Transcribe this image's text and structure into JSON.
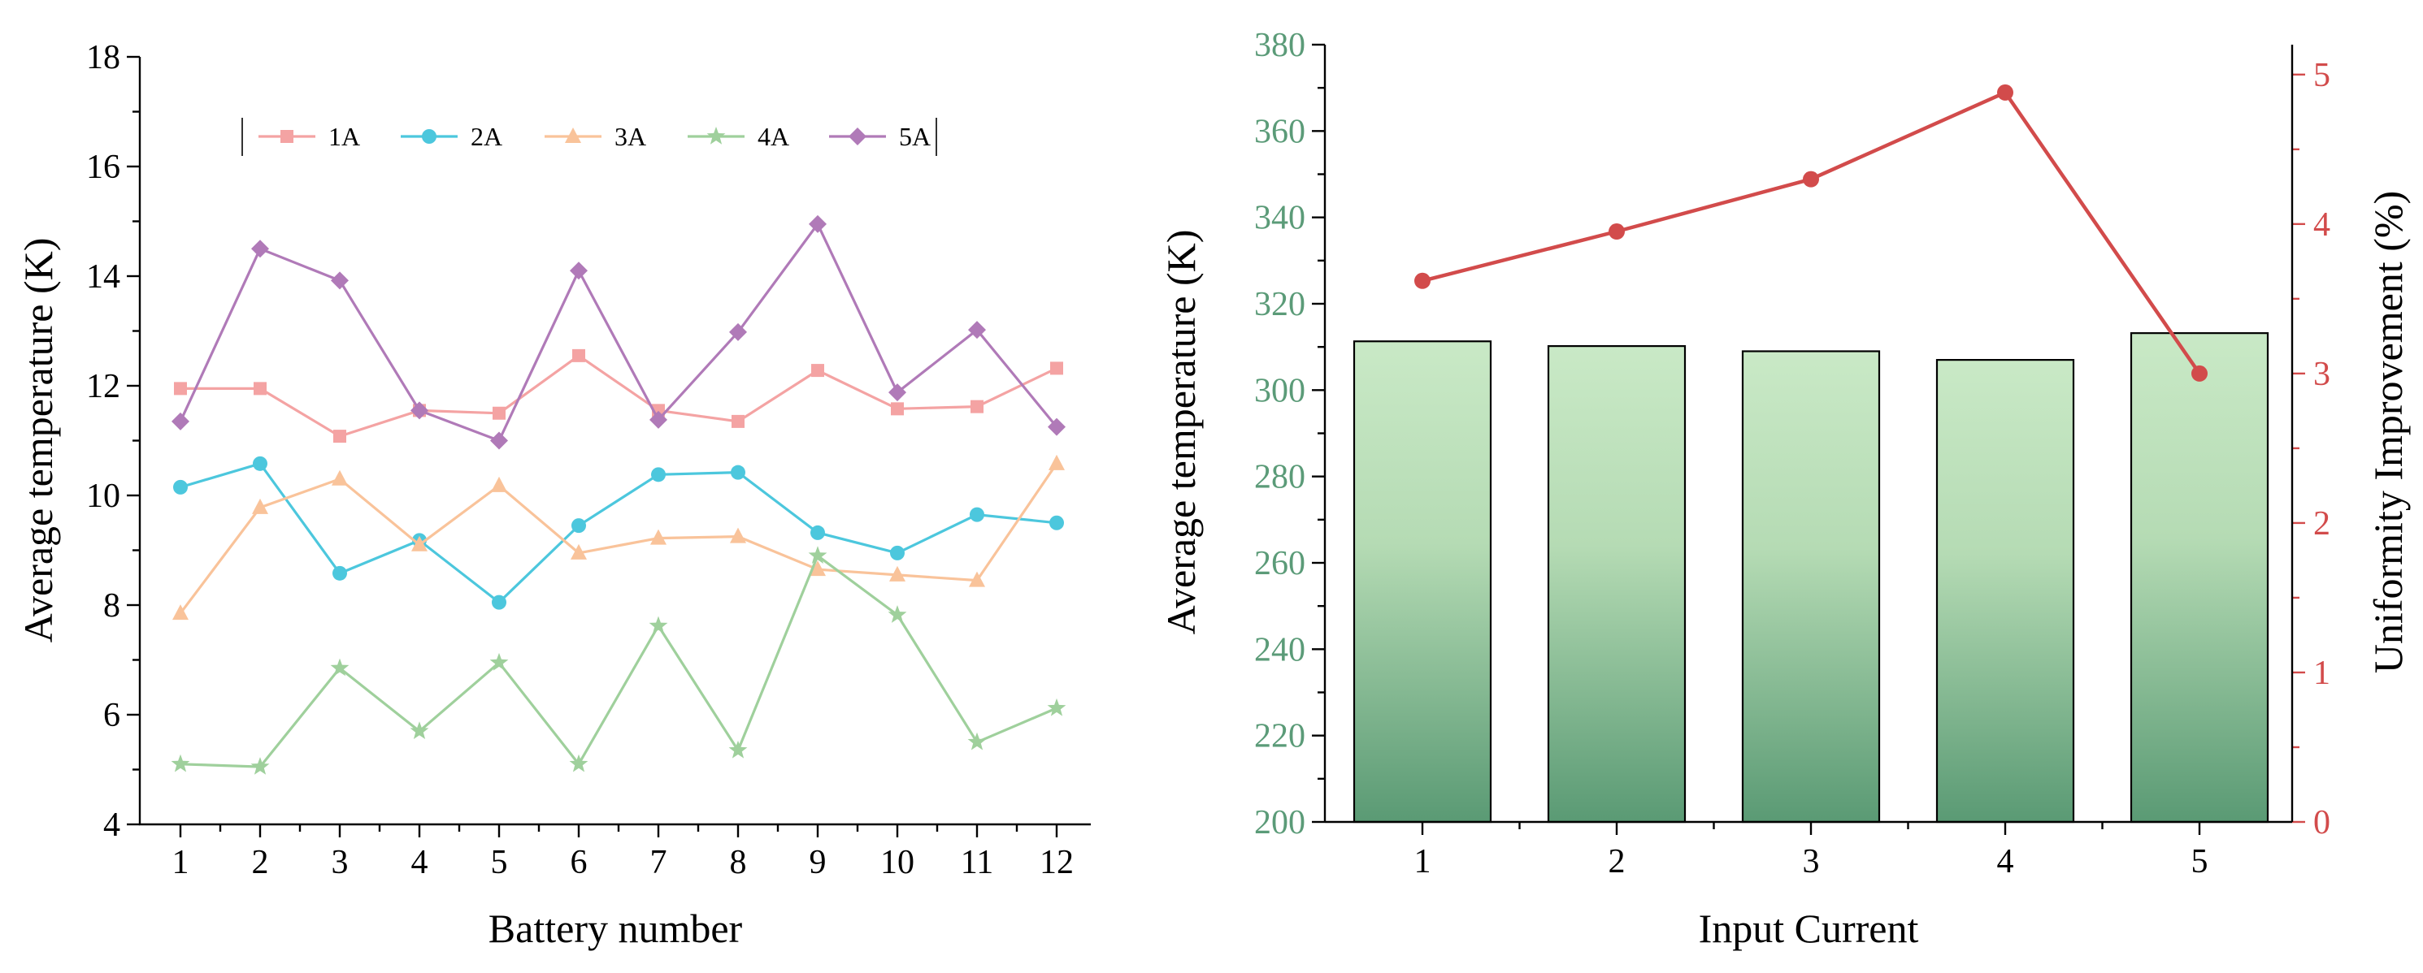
{
  "chart_data": [
    {
      "type": "line",
      "xlabel": "Battery number",
      "ylabel": "Average temperature (K)",
      "ylim": [
        4,
        18
      ],
      "yticks": [
        4,
        6,
        8,
        10,
        12,
        14,
        16,
        18
      ],
      "x": [
        1,
        2,
        3,
        4,
        5,
        6,
        7,
        8,
        9,
        10,
        11,
        12
      ],
      "legend_position": "top",
      "series": [
        {
          "name": "1A",
          "marker": "square",
          "color": "#f4a3a3",
          "values": [
            11.95,
            11.95,
            11.08,
            11.55,
            11.5,
            12.55,
            11.55,
            11.35,
            12.28,
            11.58,
            11.62,
            12.32
          ]
        },
        {
          "name": "2A",
          "marker": "circle",
          "color": "#4cc7dd",
          "values": [
            10.15,
            10.58,
            8.58,
            9.18,
            8.05,
            9.45,
            10.38,
            10.42,
            9.32,
            8.95,
            9.65,
            9.5
          ]
        },
        {
          "name": "3A",
          "marker": "triangle",
          "color": "#f9c39a",
          "values": [
            7.85,
            9.78,
            10.3,
            9.1,
            10.18,
            8.95,
            9.22,
            9.25,
            8.65,
            8.55,
            8.45,
            10.58
          ]
        },
        {
          "name": "4A",
          "marker": "star",
          "color": "#9fd09c",
          "values": [
            5.1,
            5.05,
            6.85,
            5.7,
            6.95,
            5.1,
            7.62,
            5.35,
            8.9,
            7.82,
            5.5,
            6.12
          ]
        },
        {
          "name": "5A",
          "marker": "diamond",
          "color": "#b07ab8",
          "values": [
            11.35,
            14.5,
            13.92,
            11.55,
            11.0,
            14.1,
            11.38,
            12.98,
            14.95,
            11.88,
            13.02,
            11.25
          ]
        }
      ]
    },
    {
      "type": "bar",
      "xlabel": "Input Current",
      "ylabel": "Average temperature (K)",
      "y2label": "Uniformity Improvement (%)",
      "ylim": [
        200,
        380
      ],
      "yticks": [
        200,
        220,
        240,
        260,
        280,
        300,
        320,
        340,
        360,
        380
      ],
      "y2lim": [
        0,
        5.2
      ],
      "y2ticks": [
        0,
        1,
        2,
        3,
        4,
        5
      ],
      "categories": [
        "1",
        "2",
        "3",
        "4",
        "5"
      ],
      "series": [
        {
          "name": "Average temperature (K)",
          "type": "bar",
          "axis": "left",
          "color": "#5a9e78",
          "values": [
            311.3,
            310.2,
            309.0,
            307.0,
            313.2
          ]
        },
        {
          "name": "Uniformity Improvement (%)",
          "type": "line",
          "axis": "right",
          "color": "#d24b4b",
          "values": [
            3.62,
            3.95,
            4.3,
            4.88,
            3.0
          ]
        }
      ],
      "colors": {
        "left_axis": "#5b9b78",
        "right_axis": "#d24b4b"
      }
    }
  ]
}
